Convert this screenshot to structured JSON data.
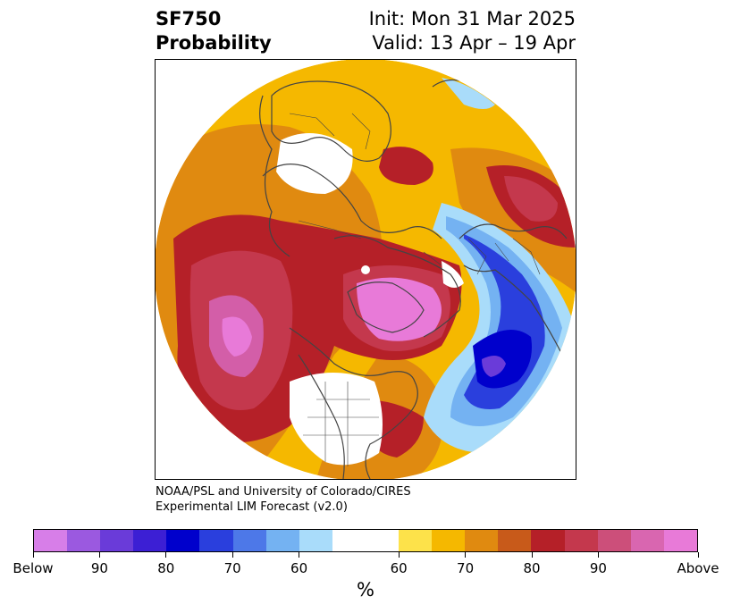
{
  "header": {
    "variable": "SF750",
    "product": "Probability",
    "init": "Init: Mon 31 Mar 2025",
    "valid": "Valid: 13 Apr – 19 Apr"
  },
  "credit": {
    "line1": "NOAA/PSL and University of Colorado/CIRES",
    "line2": "Experimental LIM Forecast (v2.0)"
  },
  "colorbar": {
    "colors": [
      "#d77ee8",
      "#9b59e0",
      "#6a3bd9",
      "#3c1fd4",
      "#0000cc",
      "#2a3fdd",
      "#4d78e8",
      "#74b2f2",
      "#a9dcfa",
      "#ffffff",
      "#ffffff",
      "#fde24a",
      "#f5b800",
      "#e08a10",
      "#c85a1a",
      "#b52028",
      "#c4384d",
      "#cc4f7a",
      "#d966b0",
      "#e87ad8"
    ],
    "tick_labels": [
      "Below",
      "90",
      "80",
      "70",
      "60",
      "60",
      "70",
      "80",
      "90",
      "Above"
    ],
    "unit": "%"
  },
  "map": {
    "projection": "north-polar-stereographic",
    "palette": {
      "above_90": "#e87ad8",
      "above_80": "#d35ea8",
      "above_70": "#c4384d",
      "above_60": "#b52028",
      "above_50": "#e08a10",
      "above_40": "#f5b800",
      "above_30": "#fde24a",
      "below_50": "#a9dcfa",
      "below_60": "#74b2f2",
      "below_70": "#2a3fdd",
      "below_80": "#0000cc",
      "below_90": "#6a3bd9",
      "coast": "#444444"
    }
  }
}
